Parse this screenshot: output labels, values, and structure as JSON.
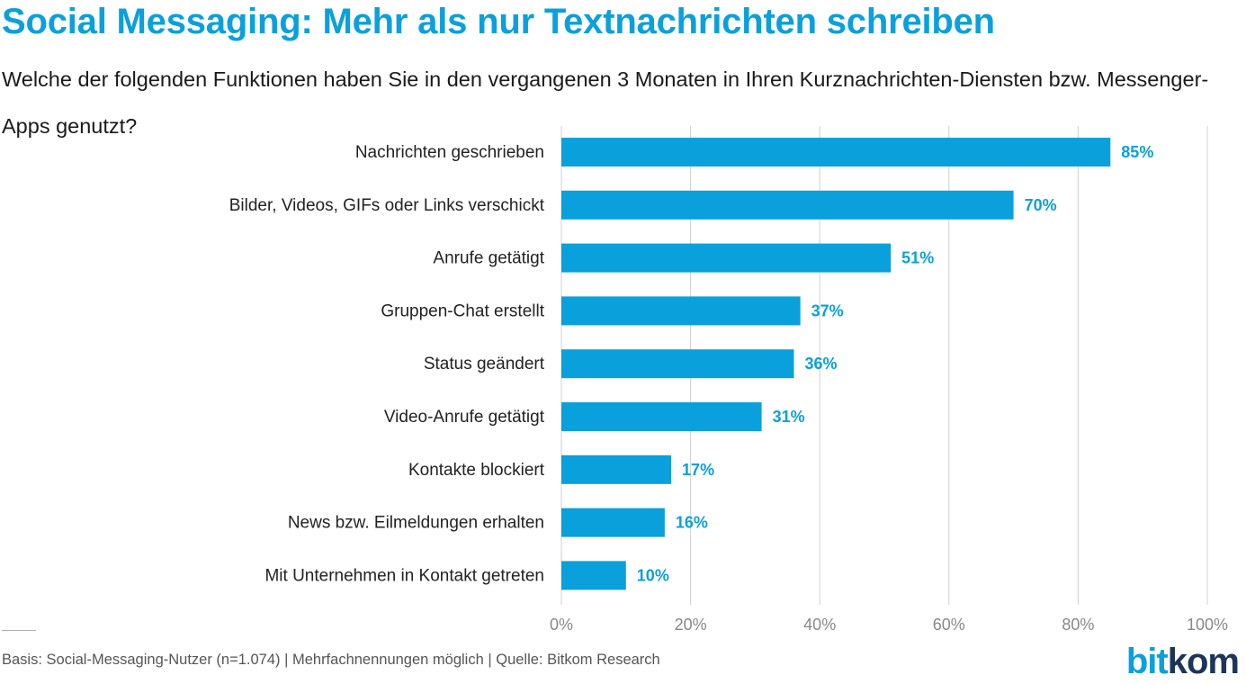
{
  "title": "Social Messaging: Mehr als nur Textnachrichten schreiben",
  "subtitle": "Welche der folgenden Funktionen haben Sie in den vergangenen 3 Monaten in Ihren Kurznachrichten-Diensten bzw. Messenger-Apps genutzt?",
  "footer": "Basis: Social-Messaging-Nutzer (n=1.074) | Mehrfachnennungen möglich | Quelle: Bitkom Research",
  "logo": {
    "part1": "bit",
    "part2": "kom"
  },
  "colors": {
    "bar": "#0aa0dc",
    "accent": "#0aa0dc",
    "grid": "#d0d0d0",
    "logo_dark": "#1d3557"
  },
  "chart_data": {
    "type": "bar",
    "orientation": "horizontal",
    "categories": [
      "Nachrichten geschrieben",
      "Bilder, Videos, GIFs oder Links verschickt",
      "Anrufe getätigt",
      "Gruppen-Chat erstellt",
      "Status geändert",
      "Video-Anrufe getätigt",
      "Kontakte blockiert",
      "News bzw. Eilmeldungen erhalten",
      "Mit Unternehmen in Kontakt getreten"
    ],
    "values": [
      85,
      70,
      51,
      37,
      36,
      31,
      17,
      16,
      10
    ],
    "value_labels": [
      "85%",
      "70%",
      "51%",
      "37%",
      "36%",
      "31%",
      "17%",
      "16%",
      "10%"
    ],
    "xlim": [
      0,
      100
    ],
    "ticks": [
      0,
      20,
      40,
      60,
      80,
      100
    ],
    "tick_labels": [
      "0%",
      "20%",
      "40%",
      "60%",
      "80%",
      "100%"
    ],
    "grid": true
  }
}
